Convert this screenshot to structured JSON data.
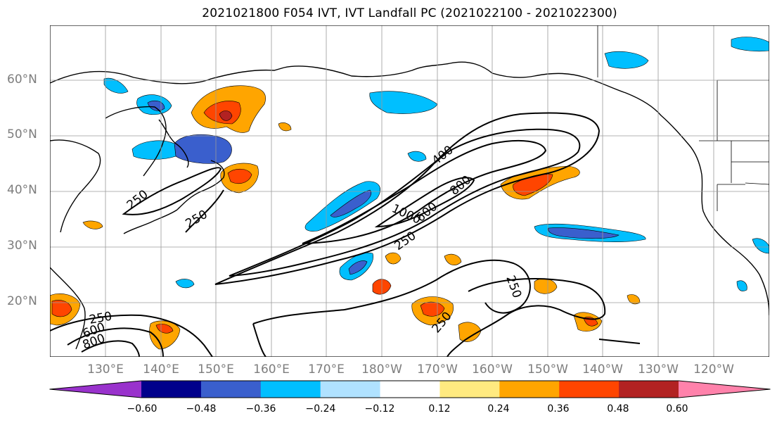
{
  "title": "2021021800 F054 IVT, IVT Landfall PC (2021022100 - 2021022300)",
  "map": {
    "latitude_labels": [
      "60°N",
      "50°N",
      "40°N",
      "30°N",
      "20°N"
    ],
    "longitude_labels": [
      "130°E",
      "140°E",
      "150°E",
      "160°E",
      "170°E",
      "180°W",
      "170°W",
      "160°W",
      "150°W",
      "140°W",
      "130°W",
      "120°W"
    ],
    "contour_labels": [
      "400",
      "800",
      "1000",
      "600",
      "250",
      "250",
      "250",
      "250",
      "250",
      "250",
      "600",
      "800"
    ],
    "contour_color": "#000000",
    "coastline_color": "#000000",
    "gridline_color": "#9a9a9a"
  },
  "colorbar": {
    "ticks": [
      "−0.60",
      "−0.48",
      "−0.36",
      "−0.24",
      "−0.12",
      "0.12",
      "0.24",
      "0.36",
      "0.48",
      "0.60"
    ],
    "colors": [
      "#9932cc",
      "#00008b",
      "#3a5fcd",
      "#00bfff",
      "#b0e2ff",
      "#ffffff",
      "#ffea80",
      "#ffa500",
      "#ff4500",
      "#b22222",
      "#ff82ab"
    ]
  }
}
